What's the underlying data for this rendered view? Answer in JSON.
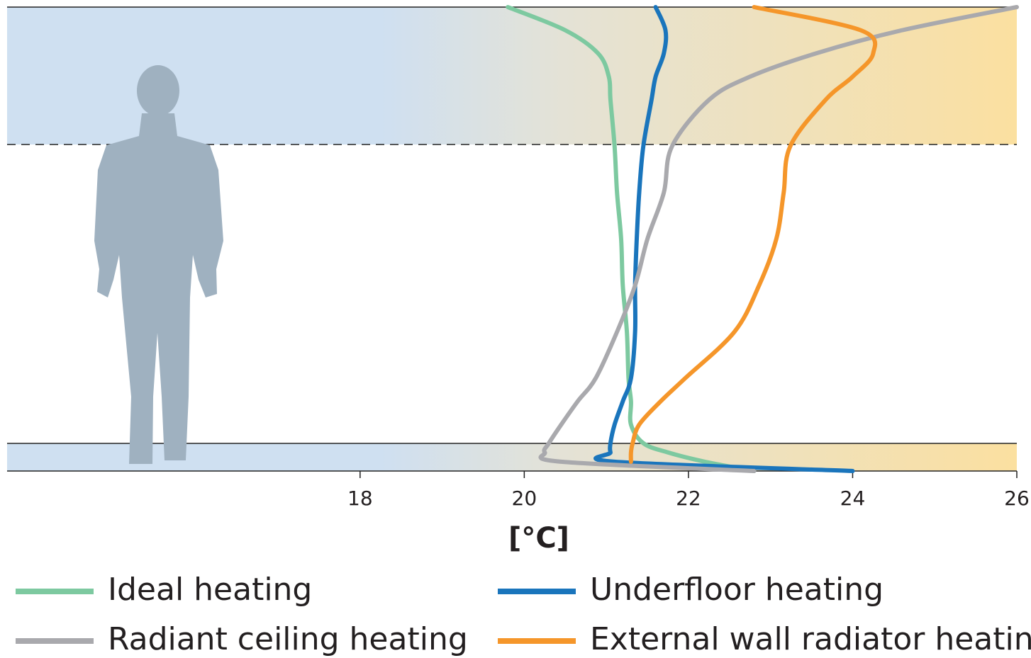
{
  "chart_data": {
    "type": "line",
    "x_label": "[°C]",
    "xlim": [
      13.7,
      26
    ],
    "xticks": [
      18,
      20,
      22,
      24,
      26
    ],
    "ylim": [
      0,
      100
    ],
    "y": [
      0,
      2,
      4,
      6,
      10,
      15,
      20,
      30,
      40,
      50,
      60,
      70,
      80,
      85,
      90,
      95,
      100
    ],
    "series": [
      {
        "name": "Ideal heating",
        "color": "#7dc9a0",
        "values": [
          22.8,
          22.2,
          21.75,
          21.45,
          21.3,
          21.3,
          21.27,
          21.25,
          21.2,
          21.18,
          21.13,
          21.1,
          21.05,
          21.03,
          20.9,
          20.5,
          19.8
        ]
      },
      {
        "name": "Underfloor heating",
        "color": "#1a75bc",
        "values": [
          24.0,
          21.1,
          21.05,
          21.05,
          21.1,
          21.2,
          21.3,
          21.35,
          21.35,
          21.37,
          21.4,
          21.45,
          21.55,
          21.6,
          21.7,
          21.72,
          21.6
        ]
      },
      {
        "name": "Radiant ceiling heating",
        "color": "#a9a9ad",
        "values": [
          22.8,
          20.45,
          20.25,
          20.3,
          20.45,
          20.65,
          20.87,
          21.13,
          21.35,
          21.5,
          21.7,
          21.8,
          22.25,
          22.75,
          23.55,
          24.6,
          26.0
        ]
      },
      {
        "name": "External wall radiator heating",
        "color": "#f5962a",
        "values": [
          null,
          21.3,
          21.3,
          21.32,
          21.4,
          21.66,
          21.96,
          22.56,
          22.86,
          23.07,
          23.16,
          23.24,
          23.67,
          24.0,
          24.25,
          24.1,
          22.8
        ]
      }
    ]
  }
}
